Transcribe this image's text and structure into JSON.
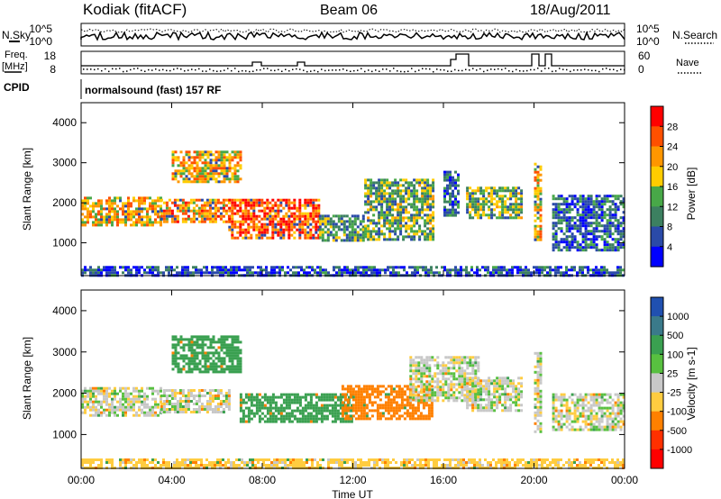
{
  "header": {
    "station": "Kodiak (fitACF)",
    "beam": "Beam 06",
    "date": "18/Aug/2011"
  },
  "status_panel": {
    "nsky_label": "N.Sky",
    "nsearch_label": "N.Search",
    "nsky_ticks": [
      "10^5",
      "10^0"
    ],
    "nsearch_ticks": [
      "10^5",
      "10^0"
    ],
    "freq_label": "Freq.",
    "freq_unit": "[MHz]",
    "freq_ticks": [
      "18",
      "8"
    ],
    "nave_label": "Nave",
    "nave_ticks": [
      "60",
      "0"
    ],
    "cpid_label": "CPID",
    "cpid_value": "normalsound (fast) 157 RF"
  },
  "chart_data": [
    {
      "type": "heatmap",
      "name": "power",
      "ylabel": "Slant Range [km]",
      "xlabel": "Time UT",
      "ylim": [
        180,
        4500
      ],
      "yticks": [
        "1000",
        "2000",
        "3000",
        "4000"
      ],
      "xlim_hours": [
        0,
        24
      ],
      "xticks": [
        "00:00",
        "04:00",
        "08:00",
        "12:00",
        "16:00",
        "20:00",
        "00:00"
      ],
      "colorbar": {
        "label": "Power [dB]",
        "ticks": [
          "28",
          "24",
          "20",
          "16",
          "12",
          "8",
          "4"
        ],
        "colors": [
          "#ff0000",
          "#ff5000",
          "#ff9600",
          "#ffcc00",
          "#48a848",
          "#3c8060",
          "#2a4aa8",
          "#0000ff"
        ]
      },
      "echo_regions": [
        {
          "t_start": 0.0,
          "t_end": 3.5,
          "r_low": 1450,
          "r_high": 2150,
          "level": 20
        },
        {
          "t_start": 3.5,
          "t_end": 6.5,
          "r_low": 1550,
          "r_high": 2100,
          "level": 22
        },
        {
          "t_start": 4.0,
          "t_end": 7.0,
          "r_low": 2500,
          "r_high": 3300,
          "level": 20
        },
        {
          "t_start": 6.5,
          "t_end": 10.5,
          "r_low": 1150,
          "r_high": 2100,
          "level": 26
        },
        {
          "t_start": 10.5,
          "t_end": 12.5,
          "r_low": 1050,
          "r_high": 1700,
          "level": 12
        },
        {
          "t_start": 12.5,
          "t_end": 15.5,
          "r_low": 1100,
          "r_high": 2600,
          "level": 14
        },
        {
          "t_start": 16.0,
          "t_end": 16.6,
          "r_low": 1700,
          "r_high": 2800,
          "level": 8
        },
        {
          "t_start": 17.0,
          "t_end": 19.5,
          "r_low": 1600,
          "r_high": 2400,
          "level": 14
        },
        {
          "t_start": 20.0,
          "t_end": 20.3,
          "r_low": 1100,
          "r_high": 3000,
          "level": 20
        },
        {
          "t_start": 20.8,
          "t_end": 24.0,
          "r_low": 800,
          "r_high": 2200,
          "level": 8
        },
        {
          "t_start": 0.0,
          "t_end": 24.0,
          "r_low": 200,
          "r_high": 420,
          "level": 6
        }
      ]
    },
    {
      "type": "heatmap",
      "name": "velocity",
      "ylabel": "Slant Range [km]",
      "xlabel": "Time UT",
      "ylim": [
        180,
        4500
      ],
      "yticks": [
        "1000",
        "2000",
        "3000",
        "4000"
      ],
      "xlim_hours": [
        0,
        24
      ],
      "xticks": [
        "00:00",
        "04:00",
        "08:00",
        "12:00",
        "16:00",
        "20:00",
        "00:00"
      ],
      "colorbar": {
        "label": "Velocity [m s-1]",
        "ticks": [
          "1000",
          "500",
          "100",
          "25",
          "-25",
          "-100",
          "-500",
          "-1000"
        ],
        "colors": [
          "#2050b0",
          "#3a7a8a",
          "#3aa050",
          "#58c040",
          "#c8c8c8",
          "#ffcc40",
          "#ff8000",
          "#ff3000",
          "#ff0000"
        ]
      },
      "echo_regions": [
        {
          "t_start": 0.0,
          "t_end": 3.5,
          "r_low": 1450,
          "r_high": 2150,
          "level": 0
        },
        {
          "t_start": 3.5,
          "t_end": 6.5,
          "r_low": 1550,
          "r_high": 2100,
          "level": 0
        },
        {
          "t_start": 4.0,
          "t_end": 7.0,
          "r_low": 2500,
          "r_high": 3400,
          "level": 200
        },
        {
          "t_start": 7.0,
          "t_end": 12.0,
          "r_low": 1300,
          "r_high": 2000,
          "level": 150
        },
        {
          "t_start": 11.5,
          "t_end": 15.5,
          "r_low": 1400,
          "r_high": 2200,
          "level": -300
        },
        {
          "t_start": 14.5,
          "t_end": 17.5,
          "r_low": 1800,
          "r_high": 2900,
          "level": 0
        },
        {
          "t_start": 17.0,
          "t_end": 19.5,
          "r_low": 1600,
          "r_high": 2400,
          "level": 0
        },
        {
          "t_start": 20.0,
          "t_end": 20.3,
          "r_low": 1100,
          "r_high": 3000,
          "level": 0
        },
        {
          "t_start": 20.8,
          "t_end": 24.0,
          "r_low": 1100,
          "r_high": 2000,
          "level": 0
        },
        {
          "t_start": 0.0,
          "t_end": 24.0,
          "r_low": 200,
          "r_high": 420,
          "level": -60
        }
      ]
    }
  ]
}
